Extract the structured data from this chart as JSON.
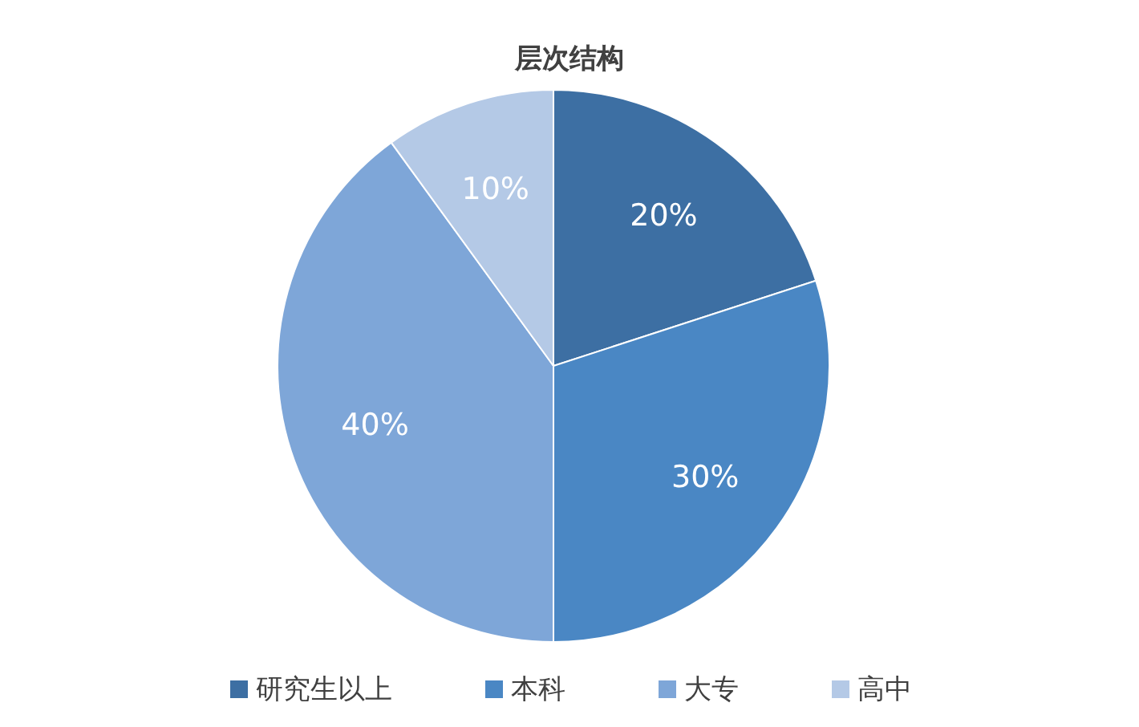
{
  "chart_data": {
    "type": "pie",
    "title": "层次结构",
    "categories": [
      "研究生以上",
      "本科",
      "大专",
      "高中"
    ],
    "values": [
      20,
      30,
      40,
      10
    ],
    "value_labels": [
      "20%",
      "30%",
      "40%",
      "10%"
    ],
    "colors": [
      "#3d6fa3",
      "#4a87c4",
      "#7ea6d8",
      "#b4c9e6"
    ],
    "legend": "bottom"
  }
}
